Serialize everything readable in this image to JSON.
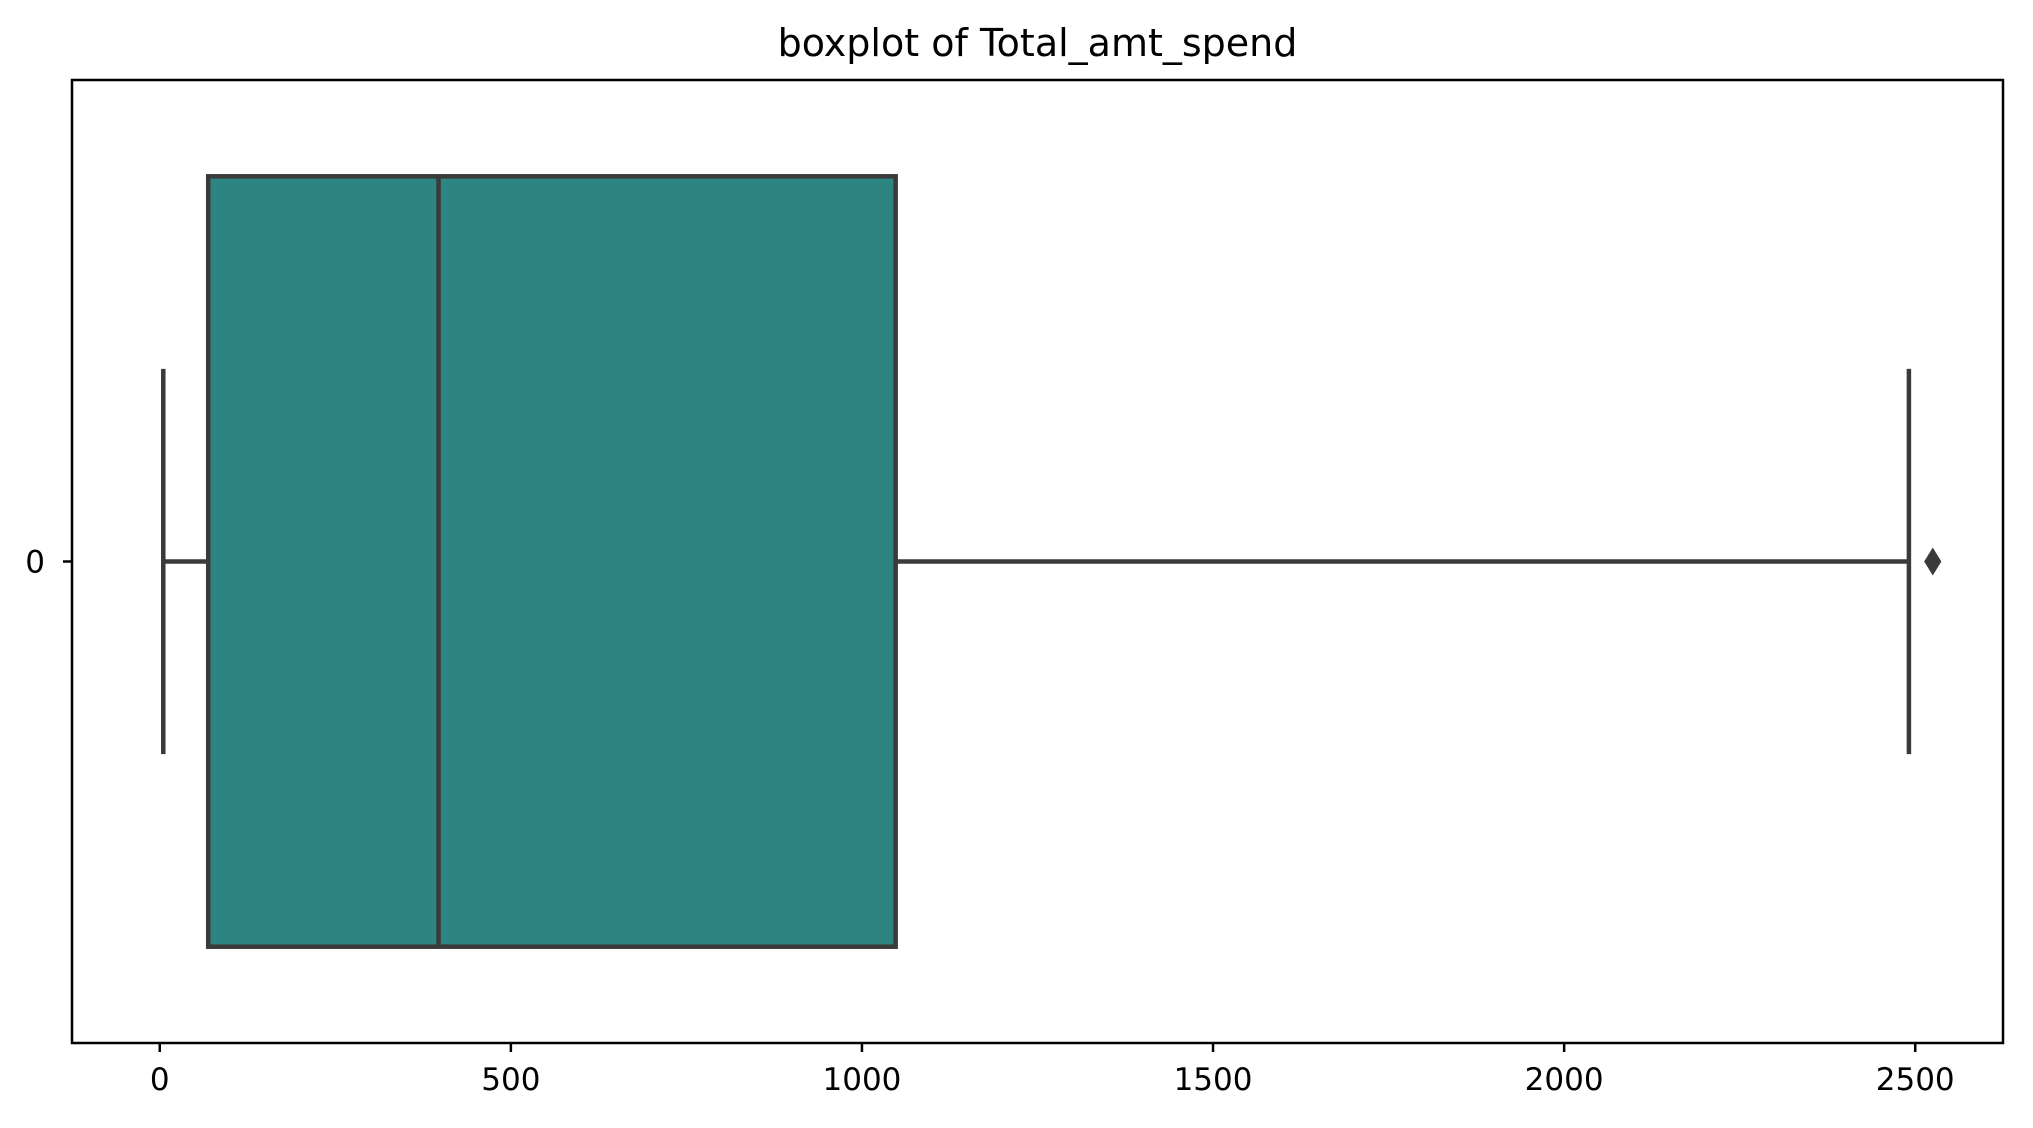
{
  "chart_data": {
    "type": "boxplot",
    "title": "boxplot of Total_amt_spend",
    "orientation": "horizontal",
    "xlabel": "",
    "ylabel": "",
    "xlim": [
      -125,
      2625
    ],
    "x_ticks": [
      0,
      500,
      1000,
      1500,
      2000,
      2500
    ],
    "x_tick_labels": [
      "0",
      "500",
      "1000",
      "1500",
      "2000",
      "2500"
    ],
    "y_tick_labels": [
      "0"
    ],
    "grid": false,
    "boxes": [
      {
        "category": "0",
        "whisker_low": 5,
        "q1": 69,
        "median": 397,
        "q3": 1048,
        "whisker_high": 2491,
        "outliers": [
          2525
        ],
        "color": "#2e8480",
        "edge_color": "#3a3a3a"
      }
    ]
  }
}
